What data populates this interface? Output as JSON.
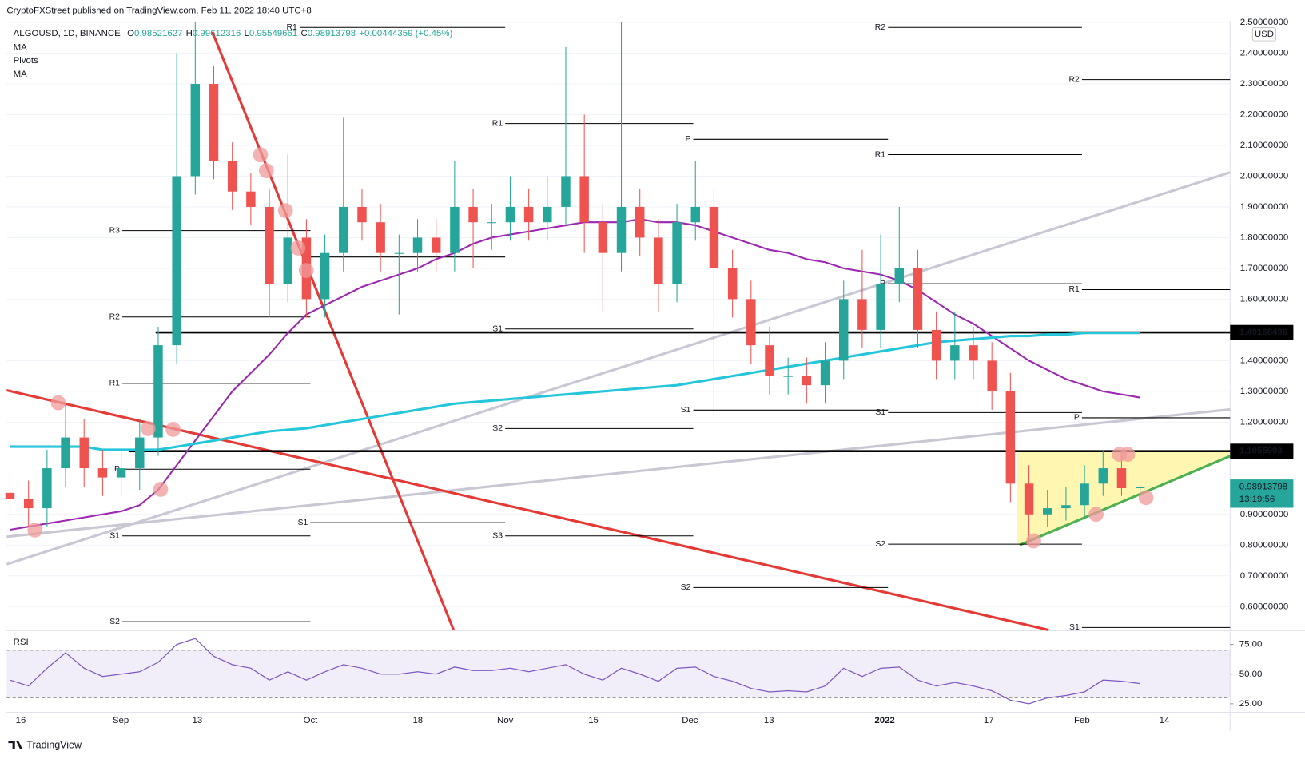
{
  "chart_data": {
    "type": "candlestick",
    "publisher": "CryptoFXStreet published on TradingView.com, Feb 11, 2022 18:40 UTC+8",
    "symbol": "ALGOUSD, 1D, BINANCE",
    "ohlc_prefixes": [
      "O",
      "H",
      "L",
      "C"
    ],
    "change": "+0.00444359 (+0.45%)",
    "indicators": [
      "MA",
      "Pivots",
      "MA"
    ],
    "currency": "USD",
    "countdown": "13:19:56",
    "rsi_title": "RSI",
    "brand": "TradingView",
    "up_color": "#26a69a",
    "down_color": "#ef5350",
    "open": [
      0.97,
      0.95,
      0.92,
      1.05,
      1.15,
      1.05,
      1.02,
      1.05,
      1.15,
      1.45,
      2.0,
      2.3,
      2.05,
      1.95,
      1.9,
      1.65,
      1.8,
      1.6,
      1.75,
      1.9,
      1.85,
      1.75,
      1.75,
      1.8,
      1.75,
      1.9,
      1.85,
      1.85,
      1.9,
      1.85,
      1.9,
      2.0,
      1.85,
      1.75,
      1.9,
      1.8,
      1.65,
      1.85,
      1.9,
      1.7,
      1.6,
      1.45,
      1.35,
      1.35,
      1.32,
      1.4,
      1.6,
      1.5,
      1.65,
      1.7,
      1.5,
      1.4,
      1.45,
      1.4,
      1.3,
      1.0,
      0.9,
      0.92,
      0.93,
      1.0,
      1.05,
      0.98521627
    ],
    "high": [
      1.03,
      1.01,
      1.11,
      1.26,
      1.21,
      1.11,
      1.11,
      1.21,
      1.51,
      2.4,
      2.5,
      2.36,
      2.11,
      2.01,
      1.96,
      2.07,
      1.86,
      1.81,
      2.19,
      1.96,
      1.91,
      1.81,
      1.86,
      1.86,
      2.05,
      1.96,
      1.91,
      2.0,
      1.96,
      2.0,
      2.42,
      2.2,
      1.91,
      2.5,
      1.96,
      1.86,
      1.91,
      2.05,
      1.96,
      1.76,
      1.66,
      1.51,
      1.41,
      1.41,
      1.46,
      1.66,
      1.76,
      1.81,
      1.9,
      1.76,
      1.56,
      1.56,
      1.51,
      1.46,
      1.36,
      1.06,
      0.98,
      0.99,
      1.06,
      1.11,
      1.09,
      0.99612316
    ],
    "low": [
      0.89,
      0.86,
      0.86,
      0.99,
      0.99,
      0.96,
      0.96,
      0.98,
      1.09,
      1.39,
      1.94,
      1.99,
      1.89,
      1.84,
      1.54,
      1.59,
      1.54,
      1.54,
      1.69,
      1.79,
      1.69,
      1.55,
      1.69,
      1.69,
      1.69,
      1.7,
      1.76,
      1.79,
      1.79,
      1.79,
      1.84,
      1.75,
      1.56,
      1.69,
      1.74,
      1.56,
      1.59,
      1.79,
      1.22,
      1.54,
      1.39,
      1.29,
      1.29,
      1.26,
      1.26,
      1.34,
      1.44,
      1.44,
      1.59,
      1.44,
      1.34,
      1.34,
      1.34,
      1.24,
      0.94,
      0.8,
      0.86,
      0.88,
      0.89,
      0.96,
      0.96,
      0.95549661
    ],
    "close": [
      0.95,
      0.92,
      1.05,
      1.15,
      1.05,
      1.02,
      1.05,
      1.15,
      1.45,
      2.0,
      2.3,
      2.05,
      1.95,
      1.9,
      1.65,
      1.8,
      1.6,
      1.75,
      1.9,
      1.85,
      1.75,
      1.75,
      1.8,
      1.75,
      1.9,
      1.85,
      1.85,
      1.9,
      1.85,
      1.9,
      2.0,
      1.85,
      1.75,
      1.9,
      1.8,
      1.65,
      1.85,
      1.9,
      1.7,
      1.6,
      1.45,
      1.35,
      1.35,
      1.32,
      1.4,
      1.6,
      1.5,
      1.65,
      1.7,
      1.5,
      1.4,
      1.45,
      1.4,
      1.3,
      1.0,
      0.9,
      0.92,
      0.93,
      1.0,
      1.05,
      0.98521627,
      0.98913798
    ],
    "ma_series": [
      {
        "name": "MA",
        "color": "#9c27b0",
        "values": [
          0.85,
          0.86,
          0.87,
          0.88,
          0.89,
          0.9,
          0.91,
          0.93,
          0.98,
          1.06,
          1.14,
          1.22,
          1.3,
          1.36,
          1.42,
          1.49,
          1.55,
          1.58,
          1.61,
          1.64,
          1.66,
          1.68,
          1.7,
          1.73,
          1.75,
          1.78,
          1.8,
          1.81,
          1.82,
          1.83,
          1.84,
          1.85,
          1.85,
          1.85,
          1.86,
          1.85,
          1.85,
          1.84,
          1.82,
          1.8,
          1.78,
          1.76,
          1.75,
          1.73,
          1.72,
          1.7,
          1.69,
          1.68,
          1.66,
          1.63,
          1.59,
          1.55,
          1.52,
          1.48,
          1.44,
          1.4,
          1.37,
          1.34,
          1.32,
          1.3,
          1.29,
          1.28
        ]
      },
      {
        "name": "MA",
        "color": "#26c6da",
        "values": [
          1.12,
          1.12,
          1.12,
          1.12,
          1.12,
          1.11,
          1.11,
          1.11,
          1.11,
          1.12,
          1.13,
          1.14,
          1.15,
          1.16,
          1.17,
          1.175,
          1.18,
          1.19,
          1.2,
          1.21,
          1.22,
          1.23,
          1.24,
          1.25,
          1.26,
          1.265,
          1.27,
          1.275,
          1.28,
          1.285,
          1.29,
          1.295,
          1.3,
          1.305,
          1.31,
          1.315,
          1.32,
          1.33,
          1.34,
          1.35,
          1.36,
          1.37,
          1.38,
          1.39,
          1.4,
          1.41,
          1.42,
          1.43,
          1.44,
          1.45,
          1.46,
          1.465,
          1.47,
          1.475,
          1.48,
          1.48,
          1.485,
          1.485,
          1.49,
          1.49,
          1.49,
          1.49
        ]
      }
    ],
    "rsi": [
      45,
      40,
      55,
      68,
      55,
      48,
      50,
      52,
      60,
      75,
      80,
      65,
      58,
      55,
      45,
      52,
      45,
      52,
      58,
      55,
      50,
      50,
      52,
      50,
      56,
      53,
      53,
      55,
      52,
      55,
      58,
      50,
      45,
      55,
      50,
      44,
      55,
      56,
      48,
      44,
      38,
      35,
      36,
      35,
      40,
      55,
      48,
      55,
      56,
      45,
      40,
      43,
      40,
      36,
      28,
      25,
      30,
      32,
      35,
      45,
      44,
      42
    ],
    "rsi_band": [
      30,
      70
    ],
    "rsi_lim": [
      18.5,
      85.1
    ],
    "rsi_ticks": [
      {
        "value": 75,
        "label": "75.00"
      },
      {
        "value": 50,
        "label": "50.00"
      },
      {
        "value": 25,
        "label": "25.00"
      }
    ],
    "levels": [
      {
        "value": 1.49168496
      },
      {
        "value": 1.1055993
      }
    ],
    "pivots": [
      {
        "label": "R1",
        "value": 2.484
      },
      {
        "label": "R3",
        "value": 1.823
      },
      {
        "label": "P",
        "value": 1.737
      },
      {
        "label": "R2",
        "value": 1.542
      },
      {
        "label": "R1",
        "value": 1.326
      },
      {
        "label": "P",
        "value": 1.047
      },
      {
        "label": "S1",
        "value": 0.83
      },
      {
        "label": "S2",
        "value": 0.551
      },
      {
        "label": "S1",
        "value": 0.873
      },
      {
        "label": "R1",
        "value": 2.171
      },
      {
        "label": "S1",
        "value": 1.503
      },
      {
        "label": "S2",
        "value": 1.179
      },
      {
        "label": "S3",
        "value": 0.83
      },
      {
        "label": "P",
        "value": 2.12
      },
      {
        "label": "S1",
        "value": 1.239
      },
      {
        "label": "S2",
        "value": 0.662
      },
      {
        "label": "R2",
        "value": 2.484
      },
      {
        "label": "R1",
        "value": 2.07
      },
      {
        "label": "P",
        "value": 1.65
      },
      {
        "label": "S1",
        "value": 1.231
      },
      {
        "label": "S2",
        "value": 0.803
      },
      {
        "label": "R2",
        "value": 2.314
      },
      {
        "label": "R1",
        "value": 1.631
      },
      {
        "label": "P",
        "value": 1.214
      },
      {
        "label": "S1",
        "value": 0.532
      }
    ],
    "xtick_labels": [
      "16",
      "Sep",
      "13",
      "Oct",
      "18",
      "Nov",
      "15",
      "Dec",
      "13",
      "2022",
      "17",
      "Feb",
      "14"
    ],
    "ylim": [
      0.524,
      2.505
    ],
    "yticks": [
      {
        "value": 2.5,
        "label": "2.50000000"
      },
      {
        "value": 2.4,
        "label": "2.40000000"
      },
      {
        "value": 2.3,
        "label": "2.30000000"
      },
      {
        "value": 2.2,
        "label": "2.20000000"
      },
      {
        "value": 2.1,
        "label": "2.10000000"
      },
      {
        "value": 2.0,
        "label": "2.00000000"
      },
      {
        "value": 1.9,
        "label": "1.90000000"
      },
      {
        "value": 1.8,
        "label": "1.80000000"
      },
      {
        "value": 1.7,
        "label": "1.70000000"
      },
      {
        "value": 1.6,
        "label": "1.60000000"
      },
      {
        "value": 1.4,
        "label": "1.40000000"
      },
      {
        "value": 1.3,
        "label": "1.30000000"
      },
      {
        "value": 1.2,
        "label": "1.20000000"
      },
      {
        "value": 0.9,
        "label": "0.90000000"
      },
      {
        "value": 0.8,
        "label": "0.80000000"
      },
      {
        "value": 0.7,
        "label": "0.70000000"
      },
      {
        "value": 0.6,
        "label": "0.60000000"
      }
    ],
    "grid": true
  }
}
